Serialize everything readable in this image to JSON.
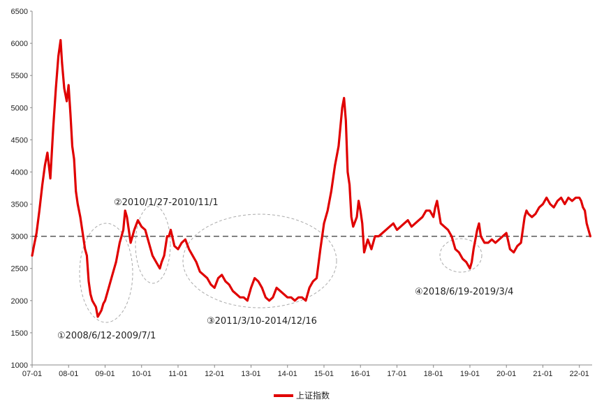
{
  "chart_data": {
    "type": "line",
    "title": "",
    "xlabel": "",
    "ylabel": "",
    "ylim": [
      1000,
      6500
    ],
    "y_ticks": [
      "1000",
      "1500",
      "2000",
      "2500",
      "3000",
      "3500",
      "4000",
      "4500",
      "5000",
      "5500",
      "6000",
      "6500"
    ],
    "x_ticks": [
      "07-01",
      "08-01",
      "09-01",
      "10-01",
      "11-01",
      "12-01",
      "13-01",
      "14-01",
      "15-01",
      "16-01",
      "17-01",
      "18-01",
      "19-01",
      "20-01",
      "21-01",
      "22-01"
    ],
    "reference_line": {
      "value": 3000,
      "style": "dashed",
      "color": "#555555"
    },
    "series": [
      {
        "name": "上证指数",
        "color": "#e00000",
        "x": [
          2007.0,
          2007.05,
          2007.12,
          2007.2,
          2007.28,
          2007.35,
          2007.42,
          2007.5,
          2007.58,
          2007.65,
          2007.72,
          2007.78,
          2007.82,
          2007.88,
          2007.95,
          2008.0,
          2008.05,
          2008.1,
          2008.15,
          2008.2,
          2008.25,
          2008.32,
          2008.4,
          2008.45,
          2008.5,
          2008.55,
          2008.6,
          2008.65,
          2008.7,
          2008.75,
          2008.8,
          2008.85,
          2008.9,
          2008.95,
          2009.0,
          2009.1,
          2009.2,
          2009.3,
          2009.4,
          2009.5,
          2009.55,
          2009.6,
          2009.7,
          2009.8,
          2009.9,
          2010.0,
          2010.1,
          2010.2,
          2010.3,
          2010.4,
          2010.5,
          2010.55,
          2010.62,
          2010.7,
          2010.75,
          2010.8,
          2010.9,
          2011.0,
          2011.1,
          2011.2,
          2011.3,
          2011.4,
          2011.5,
          2011.6,
          2011.7,
          2011.8,
          2011.9,
          2012.0,
          2012.1,
          2012.2,
          2012.3,
          2012.4,
          2012.5,
          2012.6,
          2012.7,
          2012.8,
          2012.9,
          2013.0,
          2013.1,
          2013.2,
          2013.3,
          2013.4,
          2013.5,
          2013.6,
          2013.7,
          2013.8,
          2013.9,
          2014.0,
          2014.1,
          2014.2,
          2014.3,
          2014.4,
          2014.5,
          2014.6,
          2014.7,
          2014.8,
          2014.9,
          2014.95,
          2015.0,
          2015.1,
          2015.2,
          2015.3,
          2015.4,
          2015.45,
          2015.5,
          2015.55,
          2015.6,
          2015.65,
          2015.7,
          2015.75,
          2015.8,
          2015.9,
          2015.95,
          2016.0,
          2016.05,
          2016.1,
          2016.2,
          2016.3,
          2016.4,
          2016.5,
          2016.6,
          2016.7,
          2016.8,
          2016.9,
          2017.0,
          2017.1,
          2017.2,
          2017.3,
          2017.4,
          2017.5,
          2017.6,
          2017.7,
          2017.8,
          2017.9,
          2018.0,
          2018.05,
          2018.1,
          2018.2,
          2018.3,
          2018.4,
          2018.5,
          2018.6,
          2018.7,
          2018.8,
          2018.9,
          2019.0,
          2019.05,
          2019.1,
          2019.2,
          2019.25,
          2019.3,
          2019.4,
          2019.5,
          2019.6,
          2019.7,
          2019.8,
          2019.9,
          2020.0,
          2020.1,
          2020.2,
          2020.3,
          2020.4,
          2020.5,
          2020.55,
          2020.6,
          2020.7,
          2020.8,
          2020.9,
          2021.0,
          2021.1,
          2021.2,
          2021.3,
          2021.4,
          2021.5,
          2021.6,
          2021.7,
          2021.8,
          2021.9,
          2022.0,
          2022.05,
          2022.1,
          2022.15,
          2022.2,
          2022.25,
          2022.3
        ],
        "values": [
          2700,
          2850,
          3050,
          3400,
          3800,
          4100,
          4300,
          3900,
          4700,
          5300,
          5800,
          6050,
          5700,
          5300,
          5100,
          5350,
          4900,
          4400,
          4200,
          3700,
          3500,
          3300,
          3000,
          2800,
          2700,
          2300,
          2100,
          2000,
          1950,
          1900,
          1750,
          1800,
          1850,
          1950,
          2000,
          2200,
          2400,
          2600,
          2900,
          3100,
          3400,
          3300,
          2900,
          3100,
          3250,
          3150,
          3100,
          2900,
          2700,
          2600,
          2500,
          2600,
          2700,
          3000,
          3000,
          3100,
          2850,
          2800,
          2900,
          2950,
          2800,
          2700,
          2600,
          2450,
          2400,
          2350,
          2250,
          2200,
          2350,
          2400,
          2300,
          2250,
          2150,
          2100,
          2050,
          2050,
          2000,
          2200,
          2350,
          2300,
          2200,
          2050,
          2000,
          2050,
          2200,
          2150,
          2100,
          2050,
          2050,
          2000,
          2050,
          2050,
          2000,
          2200,
          2300,
          2350,
          2800,
          3000,
          3200,
          3400,
          3700,
          4100,
          4400,
          4700,
          5000,
          5150,
          4800,
          4000,
          3800,
          3300,
          3150,
          3300,
          3550,
          3400,
          3200,
          2750,
          2950,
          2800,
          3000,
          3000,
          3050,
          3100,
          3150,
          3200,
          3100,
          3150,
          3200,
          3250,
          3150,
          3200,
          3250,
          3300,
          3400,
          3400,
          3300,
          3450,
          3550,
          3200,
          3150,
          3100,
          3000,
          2800,
          2750,
          2650,
          2600,
          2500,
          2600,
          2800,
          3100,
          3200,
          3000,
          2900,
          2900,
          2950,
          2900,
          2950,
          3000,
          3050,
          2800,
          2750,
          2850,
          2900,
          3300,
          3400,
          3350,
          3300,
          3350,
          3450,
          3500,
          3600,
          3500,
          3450,
          3550,
          3600,
          3500,
          3600,
          3550,
          3600,
          3600,
          3550,
          3450,
          3400,
          3200,
          3100,
          3000
        ]
      }
    ]
  },
  "annotations": [
    {
      "id": "a1",
      "text": "①2008/6/12-2009/7/1"
    },
    {
      "id": "a2",
      "text": "②2010/1/27-2010/11/1"
    },
    {
      "id": "a3",
      "text": "③2011/3/10-2014/12/16"
    },
    {
      "id": "a4",
      "text": "④2018/6/19-2019/3/4"
    }
  ],
  "legend": {
    "label": "上证指数",
    "placement": "bottom-center"
  }
}
